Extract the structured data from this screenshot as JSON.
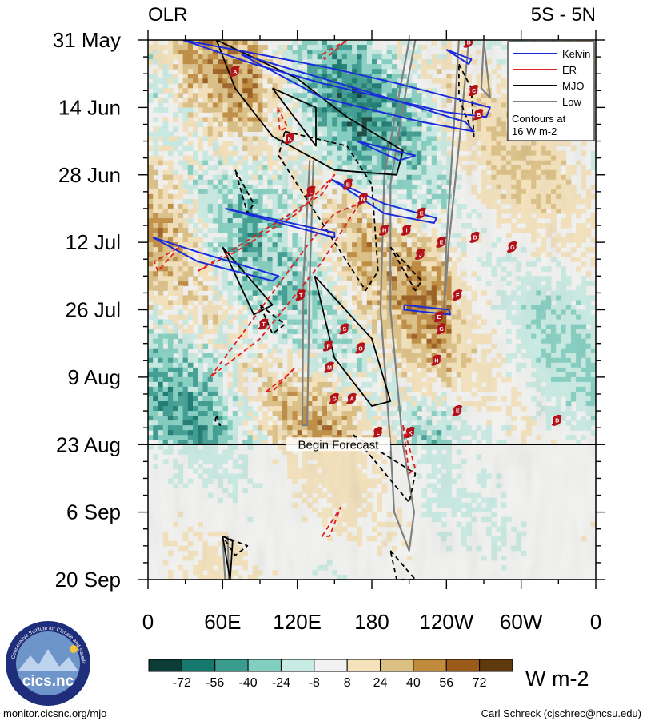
{
  "chart_data": {
    "type": "heatmap",
    "title_left": "OLR",
    "title_right": "5S - 5N",
    "xlabel": "",
    "ylabel": "",
    "x_range": [
      0,
      360
    ],
    "y_range": [
      0,
      112
    ],
    "y_ticks": [
      {
        "day": 0,
        "label": "31 May"
      },
      {
        "day": 14,
        "label": "14 Jun"
      },
      {
        "day": 28,
        "label": "28 Jun"
      },
      {
        "day": 42,
        "label": "12 Jul"
      },
      {
        "day": 56,
        "label": "26 Jul"
      },
      {
        "day": 70,
        "label": "9 Aug"
      },
      {
        "day": 84,
        "label": "23 Aug"
      },
      {
        "day": 98,
        "label": "6 Sep"
      },
      {
        "day": 112,
        "label": "20 Sep"
      }
    ],
    "x_ticks": [
      {
        "lon": 0,
        "label": "0"
      },
      {
        "lon": 60,
        "label": "60E"
      },
      {
        "lon": 120,
        "label": "120E"
      },
      {
        "lon": 180,
        "label": "180"
      },
      {
        "lon": 240,
        "label": "120W"
      },
      {
        "lon": 300,
        "label": "60W"
      },
      {
        "lon": 360,
        "label": "0"
      }
    ],
    "forecast_day": 84,
    "forecast_label": "Begin Forecast",
    "colorbar": {
      "unit": "W m-2",
      "colors": [
        "#0b3d36",
        "#17786e",
        "#3a9c8f",
        "#82cfc1",
        "#c8ebe3",
        "#f2f2f2",
        "#f5e2bb",
        "#dcc083",
        "#c08b3d",
        "#9a5b1b",
        "#5e3a0e"
      ],
      "labels": [
        "-72",
        "-56",
        "-40",
        "-24",
        "-8",
        "8",
        "24",
        "40",
        "56",
        "72"
      ]
    },
    "legend": {
      "position": "top-right",
      "items": [
        {
          "name": "Kelvin",
          "color": "#1a2bdc"
        },
        {
          "name": "ER",
          "color": "#e02020"
        },
        {
          "name": "MJO",
          "color": "#000000"
        },
        {
          "name": "Low",
          "color": "#808080"
        }
      ],
      "note_line1": "Contours at",
      "note_line2": "16 W m-2"
    },
    "storms": [
      {
        "lon": 258,
        "day": 0.5,
        "letter": "B"
      },
      {
        "lon": 70,
        "day": 6.5,
        "letter": "A"
      },
      {
        "lon": 262,
        "day": 10.5,
        "letter": "C"
      },
      {
        "lon": 266,
        "day": 15.5,
        "letter": "B"
      },
      {
        "lon": 114,
        "day": 20.5,
        "letter": "K"
      },
      {
        "lon": 161,
        "day": 30,
        "letter": "B"
      },
      {
        "lon": 131,
        "day": 31.5,
        "letter": "L"
      },
      {
        "lon": 173,
        "day": 33,
        "letter": "N"
      },
      {
        "lon": 220,
        "day": 36,
        "letter": "E"
      },
      {
        "lon": 190,
        "day": 39.5,
        "letter": "H"
      },
      {
        "lon": 208,
        "day": 39.5,
        "letter": "I"
      },
      {
        "lon": 236,
        "day": 42,
        "letter": "E"
      },
      {
        "lon": 263,
        "day": 41,
        "letter": "D"
      },
      {
        "lon": 293,
        "day": 43,
        "letter": "G"
      },
      {
        "lon": 219,
        "day": 44.5,
        "letter": "J"
      },
      {
        "lon": 123,
        "day": 53,
        "letter": "T"
      },
      {
        "lon": 249,
        "day": 53,
        "letter": "F"
      },
      {
        "lon": 93,
        "day": 59,
        "letter": "T"
      },
      {
        "lon": 234,
        "day": 57.5,
        "letter": "E"
      },
      {
        "lon": 158,
        "day": 60,
        "letter": "S"
      },
      {
        "lon": 236,
        "day": 60,
        "letter": "G"
      },
      {
        "lon": 145,
        "day": 63.5,
        "letter": "F"
      },
      {
        "lon": 171,
        "day": 64,
        "letter": "O"
      },
      {
        "lon": 232,
        "day": 66.5,
        "letter": "H"
      },
      {
        "lon": 146,
        "day": 68,
        "letter": "M"
      },
      {
        "lon": 150,
        "day": 74.5,
        "letter": "G"
      },
      {
        "lon": 164,
        "day": 74.5,
        "letter": "A"
      },
      {
        "lon": 249,
        "day": 77,
        "letter": "E"
      },
      {
        "lon": 329,
        "day": 79,
        "letter": "D"
      },
      {
        "lon": 185,
        "day": 81.5,
        "letter": "L"
      },
      {
        "lon": 211,
        "day": 81.5,
        "letter": "K"
      }
    ],
    "contours": {
      "kelvin": [
        {
          "pts": [
            [
              28,
              0
            ],
            [
              90,
              3
            ],
            [
              150,
              6
            ],
            [
              200,
              9
            ],
            [
              245,
              12
            ],
            [
              275,
              14
            ],
            [
              272,
              16
            ],
            [
              240,
              15
            ],
            [
              190,
              12
            ],
            [
              140,
              9
            ],
            [
              85,
              5
            ],
            [
              28,
              0
            ]
          ]
        },
        {
          "pts": [
            [
              75,
              3
            ],
            [
              180,
              11
            ],
            [
              255,
              17
            ],
            [
              262,
              19
            ],
            [
              220,
              17
            ],
            [
              140,
              12
            ],
            [
              75,
              3
            ]
          ]
        },
        {
          "pts": [
            [
              168,
              21
            ],
            [
              215,
              24
            ],
            [
              202,
              25
            ],
            [
              168,
              21
            ]
          ]
        },
        {
          "pts": [
            [
              148,
              29
            ],
            [
              190,
              34
            ],
            [
              232,
              37
            ],
            [
              230,
              38
            ],
            [
              190,
              36
            ],
            [
              148,
              29
            ]
          ]
        },
        {
          "pts": [
            [
              62,
              35
            ],
            [
              150,
              40
            ],
            [
              150,
              41
            ],
            [
              62,
              35
            ]
          ]
        },
        {
          "pts": [
            [
              4,
              41
            ],
            [
              40,
              44
            ],
            [
              105,
              49
            ],
            [
              100,
              50
            ],
            [
              40,
              46
            ],
            [
              4,
              41
            ]
          ]
        },
        {
          "pts": [
            [
              206,
              55
            ],
            [
              242,
              56
            ],
            [
              243,
              57
            ],
            [
              206,
              56
            ],
            [
              206,
              55
            ]
          ]
        },
        {
          "pts": [
            [
              240,
              2
            ],
            [
              260,
              4
            ],
            [
              258,
              5
            ],
            [
              240,
              2
            ]
          ]
        }
      ],
      "er": [
        {
          "pts": [
            [
              40,
              48
            ],
            [
              90,
              40
            ],
            [
              140,
              32
            ],
            [
              150,
              28
            ],
            [
              120,
              36
            ],
            [
              70,
              44
            ],
            [
              40,
              48
            ]
          ]
        },
        {
          "pts": [
            [
              50,
              70
            ],
            [
              90,
              56
            ],
            [
              130,
              42
            ],
            [
              150,
              36
            ],
            [
              170,
              34
            ],
            [
              140,
              46
            ],
            [
              90,
              62
            ],
            [
              50,
              70
            ]
          ]
        },
        {
          "pts": [
            [
              95,
              73
            ],
            [
              115,
              69
            ],
            [
              118,
              68
            ],
            [
              100,
              73
            ],
            [
              95,
              73
            ]
          ]
        },
        {
          "pts": [
            [
              25,
              43
            ],
            [
              8,
              48
            ],
            [
              5,
              46
            ],
            [
              25,
              43
            ]
          ]
        },
        {
          "pts": [
            [
              140,
              3
            ],
            [
              160,
              0
            ],
            [
              142,
              4
            ],
            [
              140,
              3
            ]
          ]
        },
        {
          "pts": [
            [
              104,
              14
            ],
            [
              112,
              18
            ],
            [
              106,
              19
            ],
            [
              104,
              14
            ]
          ]
        },
        {
          "pts": [
            [
              205,
              80
            ],
            [
              215,
              89
            ],
            [
              210,
              90
            ],
            [
              205,
              80
            ]
          ]
        },
        {
          "pts": [
            [
              140,
              103
            ],
            [
              155,
              97
            ],
            [
              146,
              103
            ],
            [
              140,
              103
            ]
          ]
        }
      ],
      "mjo_solid": [
        {
          "pts": [
            [
              55,
              0
            ],
            [
              120,
              8
            ],
            [
              160,
              16
            ],
            [
              205,
              23
            ],
            [
              200,
              28
            ],
            [
              150,
              27
            ],
            [
              100,
              20
            ],
            [
              70,
              10
            ],
            [
              55,
              0
            ]
          ]
        },
        {
          "pts": [
            [
              100,
              10
            ],
            [
              135,
              14
            ],
            [
              135,
              22
            ],
            [
              100,
              10
            ]
          ]
        },
        {
          "pts": [
            [
              134,
              49
            ],
            [
              180,
              62
            ],
            [
              195,
              75
            ],
            [
              180,
              76
            ],
            [
              150,
              66
            ],
            [
              134,
              49
            ]
          ]
        },
        {
          "pts": [
            [
              60,
              43
            ],
            [
              100,
              55
            ],
            [
              85,
              57
            ],
            [
              60,
              43
            ]
          ]
        },
        {
          "pts": [
            [
              60,
              103
            ],
            [
              68,
              104
            ],
            [
              66,
              112
            ],
            [
              60,
              103
            ]
          ]
        }
      ],
      "mjo_dashed": [
        {
          "pts": [
            [
              110,
              19
            ],
            [
              160,
              22
            ],
            [
              180,
              30
            ],
            [
              185,
              48
            ],
            [
              175,
              52
            ],
            [
              140,
              38
            ],
            [
              105,
              24
            ],
            [
              110,
              19
            ]
          ]
        },
        {
          "pts": [
            [
              70,
              27
            ],
            [
              85,
              34
            ],
            [
              80,
              36
            ],
            [
              70,
              27
            ]
          ]
        },
        {
          "pts": [
            [
              195,
              43
            ],
            [
              220,
              50
            ],
            [
              215,
              52
            ],
            [
              195,
              43
            ]
          ]
        },
        {
          "pts": [
            [
              250,
              5
            ],
            [
              260,
              10
            ],
            [
              262,
              20
            ],
            [
              250,
              12
            ],
            [
              250,
              5
            ]
          ]
        },
        {
          "pts": [
            [
              90,
              55
            ],
            [
              110,
              59
            ],
            [
              100,
              61
            ],
            [
              90,
              55
            ]
          ]
        },
        {
          "pts": [
            [
              165,
              82
            ],
            [
              215,
              90
            ],
            [
              210,
              96
            ],
            [
              165,
              82
            ]
          ]
        },
        {
          "pts": [
            [
              195,
              106
            ],
            [
              215,
              112
            ],
            [
              200,
              112
            ],
            [
              195,
              106
            ]
          ]
        },
        {
          "pts": [
            [
              55,
              78
            ],
            [
              58,
              80
            ],
            [
              54,
              79
            ],
            [
              55,
              78
            ]
          ]
        },
        {
          "pts": [
            [
              60,
              103
            ],
            [
              80,
              105
            ],
            [
              70,
              107
            ],
            [
              60,
              103
            ]
          ]
        }
      ],
      "low": [
        {
          "pts": [
            [
              210,
              0
            ],
            [
              200,
              14
            ],
            [
              190,
              28
            ],
            [
              187,
              56
            ],
            [
              195,
              84
            ],
            [
              198,
              98
            ],
            [
              210,
              106
            ],
            [
              214,
              98
            ],
            [
              205,
              84
            ],
            [
              195,
              56
            ],
            [
              195,
              30
            ],
            [
              205,
              14
            ],
            [
              215,
              0
            ]
          ]
        },
        {
          "pts": [
            [
              250,
              0
            ],
            [
              245,
              22
            ],
            [
              240,
              42
            ],
            [
              238,
              56
            ],
            [
              242,
              42
            ],
            [
              250,
              22
            ],
            [
              258,
              0
            ]
          ]
        },
        {
          "pts": [
            [
              270,
              0
            ],
            [
              275,
              12
            ],
            [
              268,
              10
            ],
            [
              270,
              0
            ]
          ]
        },
        {
          "pts": [
            [
              130,
              25
            ],
            [
              125,
              50
            ],
            [
              124,
              80
            ],
            [
              128,
              80
            ],
            [
              130,
              50
            ],
            [
              133,
              25
            ]
          ]
        },
        {
          "pts": [
            [
              60,
              103
            ],
            [
              62,
              112
            ],
            [
              65,
              112
            ],
            [
              64,
              103
            ]
          ]
        }
      ]
    }
  },
  "footer": {
    "left": "monitor.cicsnc.org/mjo",
    "right": "Carl Schreck (cjschrec@ncsu.edu)"
  },
  "logo": {
    "text": "cics.nc",
    "ring_text": "Cooperative Institute for Climate and Satellites"
  }
}
